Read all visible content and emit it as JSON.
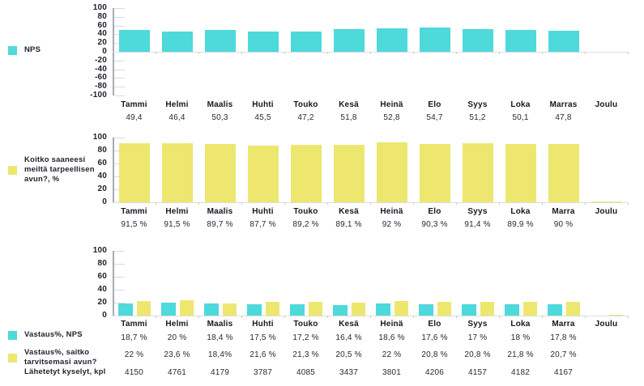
{
  "colors": {
    "cyan": "#4ED9DB",
    "yellow": "#EDE76F",
    "axis_line": "#a7abb2",
    "grid_line": "#d9dadc",
    "text": "#1d212a"
  },
  "chart_data": [
    {
      "type": "bar",
      "title": "",
      "legend_items": [
        {
          "label": "NPS",
          "color": "cyan"
        }
      ],
      "categories": [
        "Tammi",
        "Helmi",
        "Maalis",
        "Huhti",
        "Touko",
        "Kesä",
        "Heinä",
        "Elo",
        "Syys",
        "Loka",
        "Marras",
        "Joulu"
      ],
      "series": [
        {
          "color": "cyan",
          "values": [
            49.4,
            46.4,
            50.3,
            45.5,
            47.2,
            51.8,
            52.8,
            54.7,
            51.2,
            50.1,
            47.8,
            null
          ]
        }
      ],
      "value_rows": [
        [
          "49,4",
          "46,4",
          "50,3",
          "45,5",
          "47,2",
          "51,8",
          "52,8",
          "54,7",
          "51,2",
          "50,1",
          "47,8",
          ""
        ]
      ],
      "ylim": [
        -100,
        100
      ],
      "yticks": [
        100,
        80,
        60,
        40,
        20,
        0,
        -20,
        -40,
        -60,
        -80,
        -100
      ],
      "legend_position": "left",
      "grid": false
    },
    {
      "type": "bar",
      "title": "",
      "legend_items": [
        {
          "label": "Koitko saaneesi meiltä tarpeellisen avun?, %",
          "color": "yellow"
        }
      ],
      "categories": [
        "Tammi",
        "Helmi",
        "Maalis",
        "Huhti",
        "Touko",
        "Kesä",
        "Heinä",
        "Elo",
        "Syys",
        "Loka",
        "Marra",
        "Joulu"
      ],
      "series": [
        {
          "color": "yellow",
          "values": [
            91.5,
            91.5,
            89.7,
            87.7,
            89.2,
            89.1,
            92,
            90.3,
            91.4,
            89.9,
            90,
            0.6
          ]
        }
      ],
      "value_rows": [
        [
          "91,5 %",
          "91,5 %",
          "89,7 %",
          "87,7 %",
          "89,2 %",
          "89,1 %",
          "92 %",
          "90,3 %",
          "91,4 %",
          "89,9 %",
          "90 %",
          ""
        ]
      ],
      "ylim": [
        0,
        100
      ],
      "yticks": [
        100,
        80,
        60,
        40,
        20,
        0
      ],
      "legend_position": "left",
      "grid": false
    },
    {
      "type": "bar",
      "title": "",
      "legend_items": [
        {
          "label": "Vastaus%, NPS",
          "color": "cyan"
        },
        {
          "label": "Vastaus%, saitko tarvitsemasi avun?",
          "color": "yellow"
        },
        {
          "label": "Lähetetyt kyselyt, kpl",
          "color": null
        }
      ],
      "categories": [
        "Tammi",
        "Helmi",
        "Maalis",
        "Huhti",
        "Touko",
        "Kesä",
        "Heinä",
        "Elo",
        "Syys",
        "Loka",
        "Marra",
        "Joulu"
      ],
      "series": [
        {
          "color": "cyan",
          "values": [
            18.7,
            20,
            18.4,
            17.5,
            17.2,
            16.4,
            18.6,
            17.6,
            17,
            18,
            17.8,
            null
          ]
        },
        {
          "color": "yellow",
          "values": [
            22,
            23.6,
            18.4,
            21.6,
            21.3,
            20.5,
            22,
            20.8,
            20.8,
            21.8,
            20.7,
            0.6
          ]
        }
      ],
      "value_rows": [
        [
          "18,7 %",
          "20 %",
          "18,4 %",
          "17,5 %",
          "17,2 %",
          "16,4 %",
          "18,6 %",
          "17,6 %",
          "17 %",
          "18 %",
          "17,8 %",
          ""
        ],
        [
          "22 %",
          "23,6 %",
          "18,4%",
          "21,6 %",
          "21,3 %",
          "20,5 %",
          "22 %",
          "20,8 %",
          "20,8 %",
          "21,8 %",
          "20,7 %",
          ""
        ],
        [
          "4150",
          "4761",
          "4179",
          "3787",
          "4085",
          "3437",
          "3801",
          "4206",
          "4157",
          "4182",
          "4167",
          ""
        ]
      ],
      "ylim": [
        0,
        100
      ],
      "yticks": [
        100,
        80,
        60,
        40,
        20,
        0
      ],
      "legend_position": "left",
      "grid": false
    }
  ]
}
